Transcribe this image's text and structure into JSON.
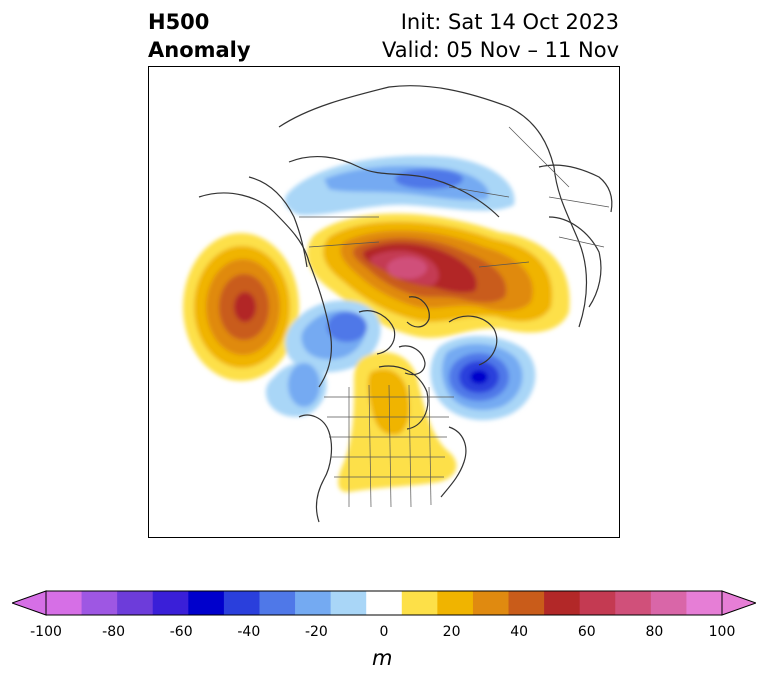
{
  "header": {
    "variable": "H500",
    "field": "Anomaly",
    "init": "Init: Sat 14 Oct 2023",
    "valid": "Valid: 05 Nov – 11 Nov"
  },
  "map": {
    "projection": "polar-stereographic",
    "region": "northern-hemisphere-north-america",
    "features": [
      {
        "name": "ridge-north-pacific",
        "sign": "positive",
        "max_anomaly_m": 60
      },
      {
        "name": "trough-gulf-of-alaska",
        "sign": "negative",
        "min_anomaly_m": -40
      },
      {
        "name": "trough-alaska-west",
        "sign": "negative",
        "min_anomaly_m": -30
      },
      {
        "name": "ridge-siberia-arctic",
        "sign": "positive",
        "max_anomaly_m": 80
      },
      {
        "name": "trough-north-siberia",
        "sign": "negative",
        "min_anomaly_m": -40
      },
      {
        "name": "trough-greenland-south",
        "sign": "negative",
        "min_anomaly_m": -60
      },
      {
        "name": "ridge-central-canada-us",
        "sign": "positive",
        "max_anomaly_m": 30
      }
    ]
  },
  "colorbar": {
    "unit": "m",
    "extend": "both",
    "min": -100,
    "max": 100,
    "boundaries": [
      -100,
      -90,
      -80,
      -70,
      -60,
      -50,
      -40,
      -30,
      -20,
      -10,
      10,
      20,
      30,
      40,
      50,
      60,
      70,
      80,
      90,
      100
    ],
    "colors": [
      "#d66fe6",
      "#9e57e3",
      "#6d3cda",
      "#3a1fd8",
      "#0000cc",
      "#2a3fdc",
      "#4f78e8",
      "#74aaf2",
      "#a9d6f7",
      "#ffffff",
      "#fde048",
      "#f0b400",
      "#e08a10",
      "#c95c1a",
      "#b22828",
      "#c43a52",
      "#d0507a",
      "#d966a8",
      "#e67ed6"
    ],
    "under_color": "#d66fe6",
    "over_color": "#e67ed6",
    "tick_labels": [
      "-100",
      "-80",
      "-60",
      "-40",
      "-20",
      "0",
      "20",
      "40",
      "60",
      "80",
      "100"
    ]
  }
}
